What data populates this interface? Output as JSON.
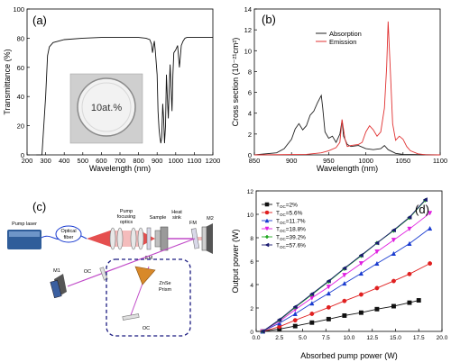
{
  "chart_data": [
    {
      "panel": "(a)",
      "type": "line",
      "xlabel": "Wavelength (nm)",
      "ylabel": "Transmittance (%)",
      "xlim": [
        200,
        1200
      ],
      "ylim": [
        0,
        100
      ],
      "xticks": [
        200,
        300,
        400,
        500,
        600,
        700,
        800,
        900,
        1000,
        1100,
        1200
      ],
      "yticks": [
        0,
        20,
        40,
        60,
        80,
        100
      ],
      "inset_label": "10at.%",
      "series": [
        {
          "color": "#111111",
          "x": [
            250,
            280,
            300,
            310,
            320,
            340,
            400,
            500,
            600,
            700,
            780,
            800,
            840,
            860,
            870,
            875,
            880,
            885,
            890,
            900,
            905,
            910,
            915,
            920,
            925,
            930,
            935,
            940,
            945,
            950,
            955,
            960,
            965,
            970,
            975,
            980,
            985,
            990,
            1000,
            1010,
            1020,
            1030,
            1040,
            1050,
            1060,
            1100,
            1200
          ],
          "y": [
            0,
            0,
            40,
            68,
            74,
            77,
            79,
            80,
            80.5,
            80.5,
            80.5,
            80.5,
            80,
            79,
            76,
            70,
            74,
            78,
            72,
            55,
            30,
            18,
            12,
            8,
            12,
            35,
            25,
            8,
            20,
            55,
            40,
            25,
            45,
            62,
            45,
            30,
            55,
            70,
            72,
            75,
            60,
            75,
            78,
            80,
            80.5,
            80.5,
            80.5
          ]
        }
      ]
    },
    {
      "panel": "(b)",
      "type": "line",
      "xlabel": "Wavelength (nm)",
      "ylabel": "Cross section (10⁻²¹cm²)",
      "xlim": [
        850,
        1100
      ],
      "ylim": [
        0,
        14
      ],
      "xticks": [
        850,
        900,
        950,
        1000,
        1050,
        1100
      ],
      "yticks": [
        0,
        2,
        4,
        6,
        8,
        10,
        12,
        14
      ],
      "legend": "top-center",
      "series": [
        {
          "name": "Absorption",
          "color": "#222222",
          "x": [
            850,
            880,
            890,
            900,
            905,
            910,
            915,
            920,
            925,
            930,
            935,
            940,
            942,
            945,
            950,
            955,
            960,
            965,
            968,
            970,
            975,
            980,
            990,
            1000,
            1010,
            1020,
            1025,
            1030,
            1040,
            1050,
            1100
          ],
          "y": [
            0,
            0.2,
            0.6,
            1.5,
            2.5,
            3.0,
            2.4,
            2.8,
            3.8,
            4.2,
            5.0,
            5.7,
            4.5,
            2.2,
            1.6,
            1.8,
            1.2,
            2.0,
            3.3,
            1.8,
            1.0,
            0.8,
            0.9,
            0.6,
            0.5,
            0.6,
            0.9,
            0.5,
            0.15,
            0.05,
            0
          ]
        },
        {
          "name": "Emission",
          "color": "#e03030",
          "x": [
            850,
            920,
            940,
            950,
            960,
            965,
            968,
            972,
            975,
            980,
            990,
            995,
            1000,
            1005,
            1010,
            1015,
            1020,
            1025,
            1028,
            1030,
            1033,
            1036,
            1040,
            1045,
            1050,
            1055,
            1060,
            1070,
            1080,
            1100
          ],
          "y": [
            0,
            0.05,
            0.2,
            0.4,
            0.7,
            1.2,
            3.4,
            1.5,
            0.8,
            0.9,
            1.0,
            1.2,
            2.2,
            2.8,
            2.4,
            1.8,
            2.2,
            4.5,
            8.5,
            12.8,
            8.0,
            3.0,
            1.4,
            1.8,
            1.5,
            0.8,
            0.4,
            0.1,
            0.02,
            0
          ]
        }
      ]
    },
    {
      "panel": "(d)",
      "type": "line",
      "xlabel": "Absorbed pump power (W)",
      "ylabel": "Output power (W)",
      "xlim": [
        0,
        20
      ],
      "ylim": [
        0,
        12
      ],
      "xticks": [
        0,
        2.5,
        5,
        7.5,
        10,
        12.5,
        15,
        17.5,
        20
      ],
      "xtick_labels": [
        "0.0",
        "2.5",
        "5.0",
        "7.5",
        "10.0",
        "12.5",
        "15.0",
        "17.5",
        "20.0"
      ],
      "yticks": [
        0,
        2,
        4,
        6,
        8,
        10,
        12
      ],
      "legend": "top-left",
      "series": [
        {
          "name": "T",
          "sub": "OC",
          "suffix": "=2%",
          "color": "#111111",
          "marker": "square",
          "x": [
            0.7,
            2.5,
            4.2,
            6.0,
            7.8,
            9.5,
            11.3,
            13.0,
            14.8,
            16.5,
            17.5
          ],
          "y": [
            0,
            0.2,
            0.45,
            0.75,
            1.05,
            1.35,
            1.6,
            1.9,
            2.15,
            2.45,
            2.65
          ]
        },
        {
          "name": "T",
          "sub": "OC",
          "suffix": "=5.6%",
          "color": "#e02020",
          "marker": "circle",
          "x": [
            0.7,
            2.5,
            4.2,
            6.0,
            7.8,
            9.5,
            11.3,
            13.0,
            14.8,
            16.5,
            18.7
          ],
          "y": [
            0,
            0.4,
            0.95,
            1.5,
            2.05,
            2.6,
            3.15,
            3.7,
            4.3,
            4.9,
            5.8
          ]
        },
        {
          "name": "T",
          "sub": "OC",
          "suffix": "=11.7%",
          "color": "#1a3cd0",
          "marker": "triangle",
          "x": [
            0.7,
            2.5,
            4.2,
            6.0,
            7.8,
            9.5,
            11.3,
            13.0,
            14.8,
            16.5,
            18.7
          ],
          "y": [
            0,
            0.7,
            1.5,
            2.4,
            3.25,
            4.1,
            4.95,
            5.8,
            6.65,
            7.5,
            8.8
          ]
        },
        {
          "name": "T",
          "sub": "OC",
          "suffix": "=18.8%",
          "color": "#e020e0",
          "marker": "triangle-down",
          "x": [
            0.7,
            2.5,
            4.2,
            6.0,
            7.8,
            9.5,
            11.3,
            13.0,
            14.8,
            16.5,
            18.7
          ],
          "y": [
            0,
            0.85,
            1.85,
            2.85,
            3.8,
            4.8,
            5.8,
            6.8,
            7.8,
            8.75,
            10.1
          ]
        },
        {
          "name": "T",
          "sub": "OC",
          "suffix": "=39.2%",
          "color": "#22a822",
          "marker": "diamond",
          "x": [
            0.7,
            2.5,
            4.2,
            6.0,
            7.8,
            9.5,
            11.3,
            13.0,
            14.8,
            16.5,
            18.2
          ],
          "y": [
            0,
            0.95,
            2.05,
            3.15,
            4.25,
            5.35,
            6.45,
            7.55,
            8.6,
            9.7,
            11.2
          ]
        },
        {
          "name": "T",
          "sub": "OC",
          "suffix": "=57.6%",
          "color": "#1a1a70",
          "marker": "triangle-left",
          "x": [
            0.7,
            2.5,
            4.2,
            6.0,
            7.8,
            9.5,
            11.3,
            13.0,
            14.8,
            16.5,
            18.2
          ],
          "y": [
            0,
            1.0,
            2.1,
            3.2,
            4.3,
            5.4,
            6.5,
            7.55,
            8.65,
            9.75,
            11.25
          ]
        }
      ]
    }
  ],
  "panel_c": {
    "label": "(c)",
    "pump_laser": "Pump laser",
    "optical_fiber_1": "Optical",
    "optical_fiber_2": "fiber",
    "pump_optics_1": "Pump",
    "pump_optics_2": "focusing",
    "pump_optics_3": "optics",
    "sample": "Sample",
    "heat_sink_1": "Heat",
    "heat_sink_2": "sink",
    "em": "EM",
    "fm": "FM",
    "m1": "M1",
    "m2": "M2",
    "oc1": "OC",
    "oc2": "OC",
    "znse_1": "ZnSe",
    "znse_2": "Prism"
  }
}
